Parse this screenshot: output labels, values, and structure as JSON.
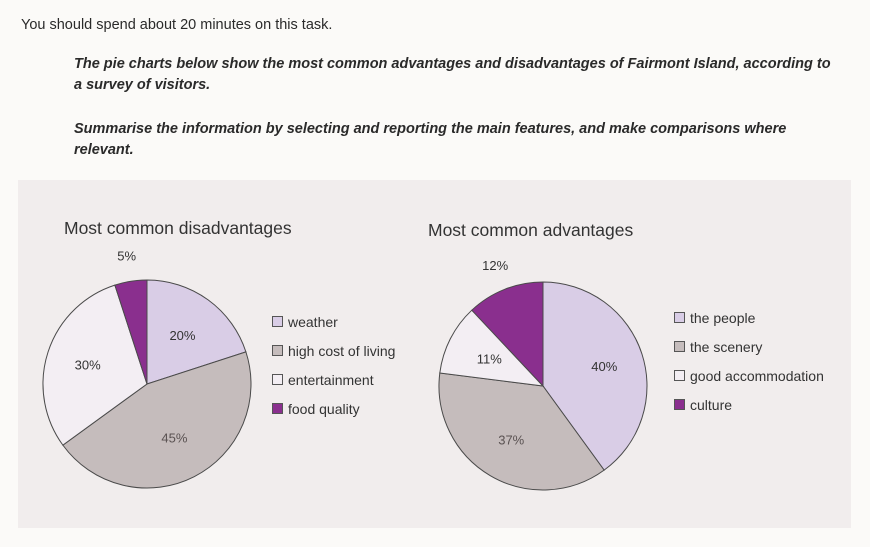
{
  "instructions": {
    "intro": "You should spend about 20 minutes on this task.",
    "prompt": "The pie charts below show the most common advantages and disadvantages of Fairmont Island, according to a survey of visitors.",
    "summary": "Summarise the information by selecting and reporting the main features, and make comparisons where relevant."
  },
  "chart_data": [
    {
      "type": "pie",
      "title": "Most common disadvantages",
      "slices": [
        {
          "label": "weather",
          "value": 20,
          "value_label": "20%",
          "color": "#d9cde6"
        },
        {
          "label": "high cost of living",
          "value": 45,
          "value_label": "45%",
          "color": "#c5bcbc"
        },
        {
          "label": "entertainment",
          "value": 30,
          "value_label": "30%",
          "color": "#f3eef3"
        },
        {
          "label": "food quality",
          "value": 5,
          "value_label": "5%",
          "color": "#8a2f8e"
        }
      ]
    },
    {
      "type": "pie",
      "title": "Most common advantages",
      "slices": [
        {
          "label": "the people",
          "value": 40,
          "value_label": "40%",
          "color": "#d9cde6"
        },
        {
          "label": "the scenery",
          "value": 37,
          "value_label": "37%",
          "color": "#c5bcbc"
        },
        {
          "label": "good accommodation",
          "value": 11,
          "value_label": "11%",
          "color": "#f3eef3"
        },
        {
          "label": "culture",
          "value": 12,
          "value_label": "12%",
          "color": "#8a2f8e"
        }
      ]
    }
  ]
}
